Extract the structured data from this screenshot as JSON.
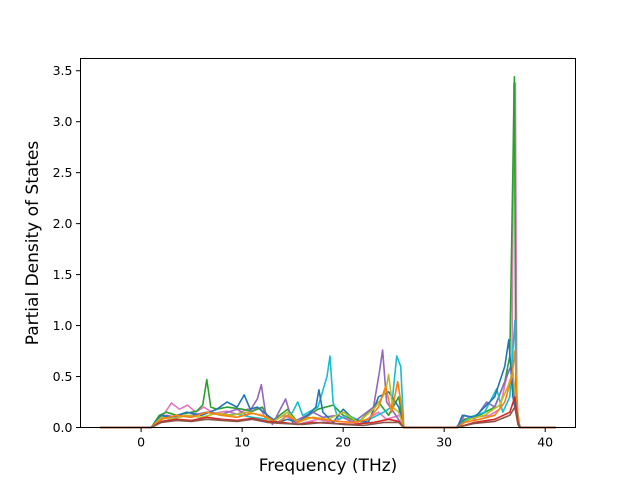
{
  "chart_data": {
    "type": "line",
    "title": "",
    "xlabel": "Frequency (THz)",
    "ylabel": "Partial Density of States",
    "xlim": [
      -6,
      43
    ],
    "ylim": [
      0,
      3.62
    ],
    "xticks": [
      0,
      10,
      20,
      30,
      40
    ],
    "xtick_labels": [
      "0",
      "10",
      "20",
      "30",
      "40"
    ],
    "yticks": [
      0.0,
      0.5,
      1.0,
      1.5,
      2.0,
      2.5,
      3.0,
      3.5
    ],
    "ytick_labels": [
      "0.0",
      "0.5",
      "1.0",
      "1.5",
      "2.0",
      "2.5",
      "3.0",
      "3.5"
    ],
    "grid": false,
    "legend": "none",
    "series": [
      {
        "color": "#e377c2",
        "points": [
          [
            -4,
            0
          ],
          [
            1,
            0
          ],
          [
            1.6,
            0.05
          ],
          [
            2.2,
            0.12
          ],
          [
            3,
            0.24
          ],
          [
            3.8,
            0.18
          ],
          [
            4.6,
            0.22
          ],
          [
            5.4,
            0.15
          ],
          [
            6.2,
            0.2
          ],
          [
            7.2,
            0.14
          ],
          [
            8.5,
            0.16
          ],
          [
            9.5,
            0.13
          ],
          [
            10.5,
            0.18
          ],
          [
            11.8,
            0.19
          ],
          [
            12.5,
            0.05
          ],
          [
            14.3,
            0.12
          ],
          [
            15.5,
            0.03
          ],
          [
            17.5,
            0.08
          ],
          [
            19,
            0.05
          ],
          [
            20,
            0.1
          ],
          [
            21.5,
            0.03
          ],
          [
            23.5,
            0.15
          ],
          [
            24.3,
            0.08
          ],
          [
            25.6,
            0.12
          ],
          [
            26,
            0
          ],
          [
            31.2,
            0
          ],
          [
            31.6,
            0.05
          ],
          [
            33,
            0.1
          ],
          [
            34.5,
            0.12
          ],
          [
            35.5,
            0.18
          ],
          [
            36.3,
            0.55
          ],
          [
            36.7,
            0.6
          ],
          [
            36.9,
            3.38
          ],
          [
            37.05,
            3.38
          ],
          [
            37.2,
            0.1
          ],
          [
            37.5,
            0
          ],
          [
            41,
            0
          ]
        ]
      },
      {
        "color": "#2ca02c",
        "points": [
          [
            -4,
            0
          ],
          [
            1,
            0
          ],
          [
            1.8,
            0.12
          ],
          [
            2.5,
            0.15
          ],
          [
            3.5,
            0.12
          ],
          [
            4.5,
            0.14
          ],
          [
            5.5,
            0.16
          ],
          [
            6.1,
            0.22
          ],
          [
            6.5,
            0.47
          ],
          [
            6.9,
            0.2
          ],
          [
            7.5,
            0.18
          ],
          [
            8.5,
            0.2
          ],
          [
            10,
            0.18
          ],
          [
            11,
            0.16
          ],
          [
            12,
            0.2
          ],
          [
            12.8,
            0.05
          ],
          [
            14.5,
            0.18
          ],
          [
            15.5,
            0.05
          ],
          [
            17.5,
            0.18
          ],
          [
            19,
            0.22
          ],
          [
            20,
            0.12
          ],
          [
            21.5,
            0.05
          ],
          [
            23.5,
            0.25
          ],
          [
            24.5,
            0.12
          ],
          [
            25.5,
            0.3
          ],
          [
            26,
            0
          ],
          [
            31.2,
            0
          ],
          [
            32,
            0.08
          ],
          [
            33.5,
            0.12
          ],
          [
            35,
            0.2
          ],
          [
            36,
            0.45
          ],
          [
            36.5,
            0.7
          ],
          [
            36.95,
            3.44
          ],
          [
            37.1,
            0.3
          ],
          [
            37.4,
            0
          ],
          [
            41,
            0
          ]
        ]
      },
      {
        "color": "#9467bd",
        "points": [
          [
            -4,
            0
          ],
          [
            1,
            0
          ],
          [
            1.8,
            0.08
          ],
          [
            2.5,
            0.12
          ],
          [
            3.5,
            0.1
          ],
          [
            5,
            0.12
          ],
          [
            6.5,
            0.15
          ],
          [
            8,
            0.13
          ],
          [
            9.5,
            0.18
          ],
          [
            10.5,
            0.12
          ],
          [
            11.5,
            0.28
          ],
          [
            11.9,
            0.42
          ],
          [
            12.3,
            0.15
          ],
          [
            13,
            0.03
          ],
          [
            14.3,
            0.28
          ],
          [
            15,
            0.05
          ],
          [
            17,
            0.15
          ],
          [
            18,
            0.1
          ],
          [
            19.5,
            0.12
          ],
          [
            21,
            0.05
          ],
          [
            23,
            0.2
          ],
          [
            23.6,
            0.55
          ],
          [
            23.9,
            0.76
          ],
          [
            24.3,
            0.25
          ],
          [
            25,
            0.15
          ],
          [
            26,
            0
          ],
          [
            31.3,
            0
          ],
          [
            32,
            0.12
          ],
          [
            33,
            0.08
          ],
          [
            34.2,
            0.25
          ],
          [
            35,
            0.2
          ],
          [
            35.8,
            0.4
          ],
          [
            36.6,
            0.6
          ],
          [
            37.1,
            0.2
          ],
          [
            37.5,
            0
          ],
          [
            41,
            0
          ]
        ]
      },
      {
        "color": "#17becf",
        "points": [
          [
            -4,
            0
          ],
          [
            1,
            0
          ],
          [
            2,
            0.08
          ],
          [
            3.5,
            0.12
          ],
          [
            5,
            0.1
          ],
          [
            6.5,
            0.15
          ],
          [
            8,
            0.12
          ],
          [
            9.5,
            0.13
          ],
          [
            11,
            0.1
          ],
          [
            12.5,
            0.08
          ],
          [
            13.5,
            0.05
          ],
          [
            15,
            0.15
          ],
          [
            15.5,
            0.25
          ],
          [
            16,
            0.12
          ],
          [
            17.5,
            0.2
          ],
          [
            18.4,
            0.5
          ],
          [
            18.7,
            0.7
          ],
          [
            19,
            0.25
          ],
          [
            19.5,
            0.08
          ],
          [
            20.5,
            0.12
          ],
          [
            22,
            0.05
          ],
          [
            24,
            0.15
          ],
          [
            24.8,
            0.2
          ],
          [
            25.3,
            0.7
          ],
          [
            25.7,
            0.6
          ],
          [
            26,
            0
          ],
          [
            31.3,
            0
          ],
          [
            32.5,
            0.1
          ],
          [
            34,
            0.15
          ],
          [
            35.2,
            0.38
          ],
          [
            35.8,
            0.15
          ],
          [
            36.5,
            0.3
          ],
          [
            37,
            1.05
          ],
          [
            37.2,
            0.2
          ],
          [
            37.5,
            0
          ],
          [
            41,
            0
          ]
        ]
      },
      {
        "color": "#1f77b4",
        "points": [
          [
            -4,
            0
          ],
          [
            1,
            0
          ],
          [
            2,
            0.12
          ],
          [
            3,
            0.1
          ],
          [
            4.5,
            0.15
          ],
          [
            6,
            0.12
          ],
          [
            7.5,
            0.18
          ],
          [
            8.5,
            0.25
          ],
          [
            9.5,
            0.2
          ],
          [
            10.2,
            0.32
          ],
          [
            10.8,
            0.18
          ],
          [
            11.5,
            0.2
          ],
          [
            12.5,
            0.12
          ],
          [
            13.5,
            0.05
          ],
          [
            14.5,
            0.08
          ],
          [
            15.5,
            0.05
          ],
          [
            16.5,
            0.12
          ],
          [
            17.3,
            0.2
          ],
          [
            17.6,
            0.37
          ],
          [
            18,
            0.15
          ],
          [
            19,
            0.05
          ],
          [
            20,
            0.18
          ],
          [
            21,
            0.08
          ],
          [
            22.5,
            0.05
          ],
          [
            23.5,
            0.3
          ],
          [
            24.5,
            0.35
          ],
          [
            25.5,
            0.2
          ],
          [
            26,
            0
          ],
          [
            31.3,
            0
          ],
          [
            31.8,
            0.12
          ],
          [
            33,
            0.1
          ],
          [
            34,
            0.2
          ],
          [
            35,
            0.3
          ],
          [
            36,
            0.6
          ],
          [
            36.4,
            0.86
          ],
          [
            36.8,
            0.3
          ],
          [
            37.3,
            0.05
          ],
          [
            37.6,
            0
          ],
          [
            41,
            0
          ]
        ]
      },
      {
        "color": "#bcbd22",
        "points": [
          [
            -4,
            0
          ],
          [
            1,
            0
          ],
          [
            2,
            0.1
          ],
          [
            3,
            0.08
          ],
          [
            4.5,
            0.12
          ],
          [
            6,
            0.1
          ],
          [
            7.5,
            0.14
          ],
          [
            9,
            0.12
          ],
          [
            10.5,
            0.15
          ],
          [
            12,
            0.12
          ],
          [
            13,
            0.05
          ],
          [
            14.5,
            0.15
          ],
          [
            15.5,
            0.05
          ],
          [
            17,
            0.1
          ],
          [
            18.5,
            0.08
          ],
          [
            20,
            0.15
          ],
          [
            21.5,
            0.05
          ],
          [
            23.2,
            0.2
          ],
          [
            24.2,
            0.35
          ],
          [
            24.5,
            0.52
          ],
          [
            24.9,
            0.2
          ],
          [
            25.5,
            0.15
          ],
          [
            26,
            0
          ],
          [
            31.3,
            0
          ],
          [
            32.5,
            0.08
          ],
          [
            34,
            0.12
          ],
          [
            35.5,
            0.22
          ],
          [
            36.3,
            0.4
          ],
          [
            36.8,
            0.55
          ],
          [
            37.2,
            0.15
          ],
          [
            37.5,
            0
          ],
          [
            41,
            0
          ]
        ]
      },
      {
        "color": "#ff7f0e",
        "points": [
          [
            -4,
            0
          ],
          [
            1,
            0
          ],
          [
            2,
            0.08
          ],
          [
            3.5,
            0.12
          ],
          [
            5,
            0.1
          ],
          [
            6.5,
            0.15
          ],
          [
            8,
            0.12
          ],
          [
            9.5,
            0.1
          ],
          [
            11,
            0.14
          ],
          [
            12.5,
            0.1
          ],
          [
            13.5,
            0.04
          ],
          [
            14.5,
            0.12
          ],
          [
            15.5,
            0.05
          ],
          [
            16.5,
            0.1
          ],
          [
            18,
            0.08
          ],
          [
            19.5,
            0.06
          ],
          [
            21,
            0.05
          ],
          [
            22.5,
            0.08
          ],
          [
            23.5,
            0.2
          ],
          [
            24.2,
            0.4
          ],
          [
            24.8,
            0.15
          ],
          [
            25.4,
            0.45
          ],
          [
            25.8,
            0.2
          ],
          [
            26,
            0
          ],
          [
            31.3,
            0
          ],
          [
            32,
            0.05
          ],
          [
            33.5,
            0.08
          ],
          [
            35,
            0.12
          ],
          [
            36,
            0.25
          ],
          [
            36.7,
            0.5
          ],
          [
            37,
            0.75
          ],
          [
            37.3,
            0.1
          ],
          [
            37.5,
            0
          ],
          [
            41,
            0
          ]
        ]
      },
      {
        "color": "#d62728",
        "points": [
          [
            -4,
            0
          ],
          [
            1,
            0
          ],
          [
            2,
            0.06
          ],
          [
            3.5,
            0.08
          ],
          [
            5,
            0.07
          ],
          [
            6.5,
            0.1
          ],
          [
            8,
            0.08
          ],
          [
            9.5,
            0.07
          ],
          [
            11,
            0.09
          ],
          [
            12.5,
            0.06
          ],
          [
            14,
            0.05
          ],
          [
            15.5,
            0.03
          ],
          [
            17,
            0.05
          ],
          [
            19,
            0.04
          ],
          [
            21,
            0.03
          ],
          [
            23,
            0.05
          ],
          [
            24.5,
            0.08
          ],
          [
            25.5,
            0.06
          ],
          [
            26,
            0
          ],
          [
            31.3,
            0
          ],
          [
            33,
            0.05
          ],
          [
            35,
            0.08
          ],
          [
            36.5,
            0.15
          ],
          [
            37,
            0.3
          ],
          [
            37.3,
            0.05
          ],
          [
            37.5,
            0
          ],
          [
            41,
            0
          ]
        ]
      },
      {
        "color": "#8c564b",
        "points": [
          [
            -4,
            0
          ],
          [
            1,
            0
          ],
          [
            2,
            0.05
          ],
          [
            3.5,
            0.07
          ],
          [
            5,
            0.06
          ],
          [
            6.5,
            0.08
          ],
          [
            8,
            0.07
          ],
          [
            9.5,
            0.06
          ],
          [
            11,
            0.08
          ],
          [
            12.5,
            0.05
          ],
          [
            14,
            0.04
          ],
          [
            16,
            0.03
          ],
          [
            18,
            0.05
          ],
          [
            20,
            0.03
          ],
          [
            22,
            0.02
          ],
          [
            24,
            0.05
          ],
          [
            25.5,
            0.05
          ],
          [
            26,
            0
          ],
          [
            31.3,
            0
          ],
          [
            33,
            0.04
          ],
          [
            35,
            0.06
          ],
          [
            36.5,
            0.12
          ],
          [
            37,
            0.2
          ],
          [
            37.3,
            0.03
          ],
          [
            37.5,
            0
          ],
          [
            41,
            0
          ]
        ]
      }
    ]
  }
}
